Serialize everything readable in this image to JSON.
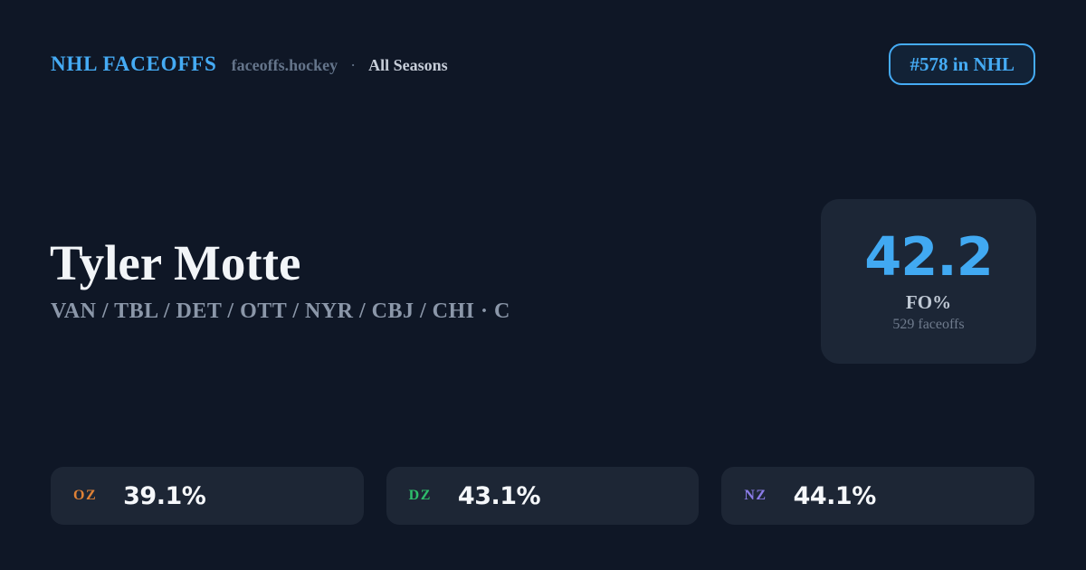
{
  "header": {
    "brand": "NHL FACEOFFS",
    "site": "faceoffs.hockey",
    "separator": "·",
    "season": "All Seasons",
    "rank_badge": "#578 in NHL"
  },
  "player": {
    "name": "Tyler Motte",
    "teams": "VAN / TBL / DET / OTT / NYR / CBJ / CHI · C"
  },
  "faceoff_card": {
    "value": "42.2",
    "label": "FO%",
    "faceoffs": "529 faceoffs"
  },
  "zones": [
    {
      "code": "OZ",
      "value": "39.1%",
      "color": "#e08236"
    },
    {
      "code": "DZ",
      "value": "43.1%",
      "color": "#2ebd6b"
    },
    {
      "code": "NZ",
      "value": "44.1%",
      "color": "#8b7ce8"
    }
  ],
  "colors": {
    "background": "#0f1726",
    "card_background": "#1c2636",
    "pill_background": "#1d2635",
    "accent_blue": "#41a9f2",
    "text_primary": "#f2f5f8",
    "text_secondary": "#8b97a9",
    "text_muted": "#6f7b8d"
  }
}
